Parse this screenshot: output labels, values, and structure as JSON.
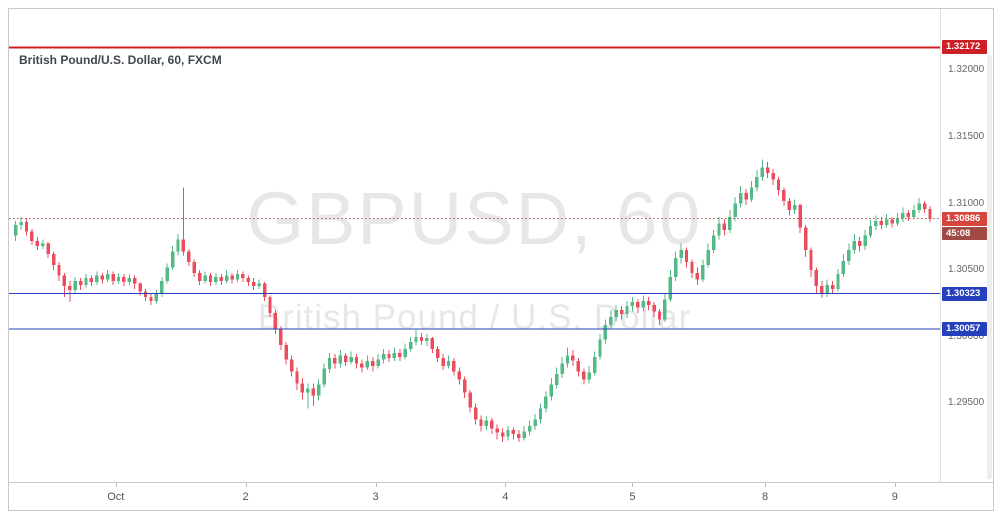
{
  "header": {
    "title": "British Pound/U.S. Dollar, 60, FXCM"
  },
  "watermark": {
    "line1": "GBPUSD, 60",
    "line2": "British Pound / U.S. Dollar"
  },
  "colors": {
    "up": "#53b987",
    "down": "#eb4d5c",
    "resistance_red": "#cc2026",
    "current_red": "#d6453e",
    "countdown_bg": "#9f4a43",
    "support_blue": "#2440bd",
    "axis_text": "#666666",
    "watermark": "#e7e7e7"
  },
  "chart_data": {
    "type": "candlestick",
    "symbol": "GBPUSD",
    "interval": "60",
    "provider": "FXCM",
    "title": "British Pound/U.S. Dollar, 60, FXCM",
    "current_price": 1.30886,
    "countdown": "45:08",
    "price_axis": {
      "min": 1.2891,
      "max": 1.3246,
      "ticks": [
        {
          "price": 1.32,
          "label": "1.32000"
        },
        {
          "price": 1.315,
          "label": "1.31500"
        },
        {
          "price": 1.31,
          "label": "1.31000"
        },
        {
          "price": 1.305,
          "label": "1.30500"
        },
        {
          "price": 1.3,
          "label": "1.30000"
        },
        {
          "price": 1.295,
          "label": "1.29500"
        }
      ]
    },
    "time_axis": {
      "ticks": [
        {
          "pos": 18.5,
          "label": "Oct"
        },
        {
          "pos": 42.5,
          "label": "2"
        },
        {
          "pos": 66.5,
          "label": "3"
        },
        {
          "pos": 90.5,
          "label": "4"
        },
        {
          "pos": 114,
          "label": "5"
        },
        {
          "pos": 138.5,
          "label": "8"
        },
        {
          "pos": 162.5,
          "label": "9"
        }
      ]
    },
    "levels": [
      {
        "name": "resistance-level",
        "price": 1.32172,
        "label": "1.32172",
        "line_color": "#cc2026",
        "badge_color": "#cc2026",
        "style": "solid",
        "width": 2
      },
      {
        "name": "current-price",
        "price": 1.30886,
        "label": "1.30886",
        "line_color": "#d6453e",
        "badge_color": "#d6453e",
        "style": "dotted",
        "width": 1,
        "countdown": "45:08"
      },
      {
        "name": "support-level-1",
        "price": 1.30323,
        "label": "1.30323",
        "line_color": "#2440bd",
        "badge_color": "#2440bd",
        "style": "solid",
        "width": 1
      },
      {
        "name": "support-level-2",
        "price": 1.30057,
        "label": "1.30057",
        "line_color": "#2440bd",
        "badge_color": "#2440bd",
        "style": "solid",
        "width": 1
      }
    ],
    "candles": [
      [
        1.3076,
        1.3087,
        1.3072,
        1.3084
      ],
      [
        1.3084,
        1.309,
        1.308,
        1.3086
      ],
      [
        1.3086,
        1.3089,
        1.3076,
        1.3079
      ],
      [
        1.3079,
        1.3081,
        1.3069,
        1.3072
      ],
      [
        1.3072,
        1.3075,
        1.3065,
        1.3068
      ],
      [
        1.3068,
        1.3073,
        1.3066,
        1.307
      ],
      [
        1.307,
        1.3071,
        1.3059,
        1.3062
      ],
      [
        1.3062,
        1.3064,
        1.305,
        1.3054
      ],
      [
        1.3054,
        1.3056,
        1.3042,
        1.3046
      ],
      [
        1.3046,
        1.3048,
        1.303,
        1.3038
      ],
      [
        1.3038,
        1.3042,
        1.3026,
        1.3035
      ],
      [
        1.3035,
        1.3045,
        1.3033,
        1.3042
      ],
      [
        1.3042,
        1.3044,
        1.3035,
        1.3039
      ],
      [
        1.3039,
        1.3047,
        1.3037,
        1.3044
      ],
      [
        1.3044,
        1.3046,
        1.3038,
        1.3041
      ],
      [
        1.3041,
        1.3049,
        1.3039,
        1.3046
      ],
      [
        1.3046,
        1.3048,
        1.304,
        1.3043
      ],
      [
        1.3043,
        1.305,
        1.3041,
        1.3047
      ],
      [
        1.3047,
        1.3049,
        1.3039,
        1.3042
      ],
      [
        1.3042,
        1.3048,
        1.304,
        1.3045
      ],
      [
        1.3045,
        1.3047,
        1.3038,
        1.3041
      ],
      [
        1.3041,
        1.3047,
        1.3039,
        1.3044
      ],
      [
        1.3044,
        1.3046,
        1.3036,
        1.304
      ],
      [
        1.304,
        1.3041,
        1.3031,
        1.3034
      ],
      [
        1.3034,
        1.3036,
        1.3027,
        1.303
      ],
      [
        1.303,
        1.3033,
        1.3024,
        1.3027
      ],
      [
        1.3027,
        1.3035,
        1.3025,
        1.3032
      ],
      [
        1.3032,
        1.3045,
        1.303,
        1.3042
      ],
      [
        1.3042,
        1.3055,
        1.304,
        1.3052
      ],
      [
        1.3052,
        1.3068,
        1.305,
        1.3064
      ],
      [
        1.3064,
        1.3077,
        1.3061,
        1.3073
      ],
      [
        1.3073,
        1.3112,
        1.3061,
        1.3064
      ],
      [
        1.3064,
        1.3066,
        1.3053,
        1.3056
      ],
      [
        1.3056,
        1.3058,
        1.3045,
        1.3048
      ],
      [
        1.3048,
        1.305,
        1.3039,
        1.3042
      ],
      [
        1.3042,
        1.3049,
        1.304,
        1.3046
      ],
      [
        1.3046,
        1.3048,
        1.3038,
        1.3041
      ],
      [
        1.3041,
        1.3048,
        1.3039,
        1.3045
      ],
      [
        1.3045,
        1.3047,
        1.3039,
        1.3042
      ],
      [
        1.3042,
        1.305,
        1.304,
        1.3046
      ],
      [
        1.3046,
        1.3048,
        1.304,
        1.3043
      ],
      [
        1.3043,
        1.305,
        1.3041,
        1.3047
      ],
      [
        1.3047,
        1.3049,
        1.3041,
        1.3044
      ],
      [
        1.3044,
        1.3046,
        1.3038,
        1.3041
      ],
      [
        1.3041,
        1.3044,
        1.3035,
        1.3038
      ],
      [
        1.3038,
        1.3043,
        1.3036,
        1.304
      ],
      [
        1.304,
        1.3041,
        1.3027,
        1.303
      ],
      [
        1.303,
        1.3031,
        1.3015,
        1.3018
      ],
      [
        1.3018,
        1.302,
        1.3002,
        1.3006
      ],
      [
        1.3006,
        1.3008,
        1.299,
        1.2994
      ],
      [
        1.2994,
        1.2996,
        1.2979,
        1.2983
      ],
      [
        1.2983,
        1.2986,
        1.297,
        1.2974
      ],
      [
        1.2974,
        1.2977,
        1.296,
        1.2965
      ],
      [
        1.2965,
        1.2969,
        1.2953,
        1.2958
      ],
      [
        1.2958,
        1.2965,
        1.2946,
        1.2961
      ],
      [
        1.2961,
        1.2965,
        1.2948,
        1.2956
      ],
      [
        1.2956,
        1.2968,
        1.2952,
        1.2964
      ],
      [
        1.2964,
        1.298,
        1.2962,
        1.2976
      ],
      [
        1.2976,
        1.2988,
        1.2973,
        1.2984
      ],
      [
        1.2984,
        1.2987,
        1.2976,
        1.298
      ],
      [
        1.298,
        1.299,
        1.2977,
        1.2986
      ],
      [
        1.2986,
        1.2988,
        1.2978,
        1.2981
      ],
      [
        1.2981,
        1.2989,
        1.2979,
        1.2985
      ],
      [
        1.2985,
        1.2987,
        1.2976,
        1.298
      ],
      [
        1.298,
        1.2983,
        1.2973,
        1.2977
      ],
      [
        1.2977,
        1.2986,
        1.2975,
        1.2982
      ],
      [
        1.2982,
        1.2985,
        1.2974,
        1.2978
      ],
      [
        1.2978,
        1.2987,
        1.2976,
        1.2983
      ],
      [
        1.2983,
        1.2991,
        1.298,
        1.2987
      ],
      [
        1.2987,
        1.299,
        1.2981,
        1.2984
      ],
      [
        1.2984,
        1.2992,
        1.2982,
        1.2988
      ],
      [
        1.2988,
        1.2991,
        1.2982,
        1.2985
      ],
      [
        1.2985,
        1.2995,
        1.2983,
        1.2991
      ],
      [
        1.2991,
        1.3,
        1.2989,
        1.2996
      ],
      [
        1.2996,
        1.3005,
        1.2994,
        1.3
      ],
      [
        1.3,
        1.3003,
        1.2994,
        1.2997
      ],
      [
        1.2997,
        1.3002,
        1.2993,
        1.2999
      ],
      [
        1.2999,
        1.3,
        1.2988,
        1.2991
      ],
      [
        1.2991,
        1.2993,
        1.2981,
        1.2984
      ],
      [
        1.2984,
        1.2987,
        1.2975,
        1.2978
      ],
      [
        1.2978,
        1.2986,
        1.2976,
        1.2982
      ],
      [
        1.2982,
        1.2984,
        1.2971,
        1.2974
      ],
      [
        1.2974,
        1.2977,
        1.2964,
        1.2968
      ],
      [
        1.2968,
        1.297,
        1.2954,
        1.2958
      ],
      [
        1.2958,
        1.296,
        1.2943,
        1.2947
      ],
      [
        1.2947,
        1.295,
        1.2934,
        1.2938
      ],
      [
        1.2938,
        1.2941,
        1.2929,
        1.2933
      ],
      [
        1.2933,
        1.294,
        1.293,
        1.2937
      ],
      [
        1.2937,
        1.2939,
        1.2927,
        1.2931
      ],
      [
        1.2931,
        1.2934,
        1.2923,
        1.2928
      ],
      [
        1.2928,
        1.2931,
        1.2921,
        1.2925
      ],
      [
        1.2925,
        1.2933,
        1.2922,
        1.293
      ],
      [
        1.293,
        1.2932,
        1.2923,
        1.2927
      ],
      [
        1.2927,
        1.293,
        1.2921,
        1.2924
      ],
      [
        1.2924,
        1.2933,
        1.2922,
        1.2929
      ],
      [
        1.2929,
        1.2937,
        1.2926,
        1.2933
      ],
      [
        1.2933,
        1.2942,
        1.293,
        1.2938
      ],
      [
        1.2938,
        1.295,
        1.2935,
        1.2946
      ],
      [
        1.2946,
        1.2959,
        1.2943,
        1.2955
      ],
      [
        1.2955,
        1.2969,
        1.2952,
        1.2964
      ],
      [
        1.2964,
        1.2977,
        1.2961,
        1.2972
      ],
      [
        1.2972,
        1.2985,
        1.2969,
        1.298
      ],
      [
        1.298,
        1.2992,
        1.2977,
        1.2986
      ],
      [
        1.2986,
        1.299,
        1.2978,
        1.2982
      ],
      [
        1.2982,
        1.2984,
        1.297,
        1.2974
      ],
      [
        1.2974,
        1.2976,
        1.2964,
        1.2968
      ],
      [
        1.2968,
        1.2978,
        1.2965,
        1.2973
      ],
      [
        1.2973,
        1.2989,
        1.2971,
        1.2985
      ],
      [
        1.2985,
        1.3002,
        1.2983,
        1.2998
      ],
      [
        1.2998,
        1.3013,
        1.2995,
        1.3009
      ],
      [
        1.3009,
        1.302,
        1.3006,
        1.3015
      ],
      [
        1.3015,
        1.3024,
        1.3012,
        1.302
      ],
      [
        1.302,
        1.3023,
        1.3013,
        1.3017
      ],
      [
        1.3017,
        1.3027,
        1.3014,
        1.3023
      ],
      [
        1.3023,
        1.303,
        1.3019,
        1.3026
      ],
      [
        1.3026,
        1.3028,
        1.3018,
        1.3022
      ],
      [
        1.3022,
        1.3031,
        1.3019,
        1.3027
      ],
      [
        1.3027,
        1.303,
        1.302,
        1.3024
      ],
      [
        1.3024,
        1.3026,
        1.3015,
        1.3019
      ],
      [
        1.3019,
        1.3021,
        1.3009,
        1.3013
      ],
      [
        1.3013,
        1.3032,
        1.3011,
        1.3028
      ],
      [
        1.3028,
        1.305,
        1.3026,
        1.3045
      ],
      [
        1.3045,
        1.3064,
        1.3042,
        1.3059
      ],
      [
        1.3059,
        1.307,
        1.3055,
        1.3065
      ],
      [
        1.3065,
        1.3067,
        1.3052,
        1.3056
      ],
      [
        1.3056,
        1.3058,
        1.3044,
        1.3048
      ],
      [
        1.3048,
        1.3052,
        1.3039,
        1.3043
      ],
      [
        1.3043,
        1.3058,
        1.3041,
        1.3054
      ],
      [
        1.3054,
        1.307,
        1.3052,
        1.3065
      ],
      [
        1.3065,
        1.308,
        1.3063,
        1.3076
      ],
      [
        1.3076,
        1.309,
        1.3073,
        1.3085
      ],
      [
        1.3085,
        1.3088,
        1.3076,
        1.308
      ],
      [
        1.308,
        1.3095,
        1.3078,
        1.309
      ],
      [
        1.309,
        1.3105,
        1.3087,
        1.31
      ],
      [
        1.31,
        1.3113,
        1.3097,
        1.3108
      ],
      [
        1.3108,
        1.3111,
        1.3099,
        1.3103
      ],
      [
        1.3103,
        1.3117,
        1.3101,
        1.3112
      ],
      [
        1.3112,
        1.3125,
        1.3109,
        1.312
      ],
      [
        1.312,
        1.3133,
        1.3117,
        1.3127
      ],
      [
        1.3127,
        1.3131,
        1.3119,
        1.3123
      ],
      [
        1.3123,
        1.3126,
        1.3114,
        1.3118
      ],
      [
        1.3118,
        1.312,
        1.3106,
        1.311
      ],
      [
        1.311,
        1.3112,
        1.3098,
        1.3102
      ],
      [
        1.3102,
        1.3104,
        1.3091,
        1.3095
      ],
      [
        1.3095,
        1.3103,
        1.3092,
        1.3099
      ],
      [
        1.3099,
        1.31,
        1.3078,
        1.3082
      ],
      [
        1.3082,
        1.3084,
        1.306,
        1.3065
      ],
      [
        1.3065,
        1.3067,
        1.3045,
        1.305
      ],
      [
        1.305,
        1.3052,
        1.3033,
        1.3038
      ],
      [
        1.3038,
        1.3042,
        1.3029,
        1.3033
      ],
      [
        1.3033,
        1.3043,
        1.303,
        1.3039
      ],
      [
        1.3039,
        1.3042,
        1.3032,
        1.3036
      ],
      [
        1.3036,
        1.3051,
        1.3034,
        1.3047
      ],
      [
        1.3047,
        1.3062,
        1.3045,
        1.3057
      ],
      [
        1.3057,
        1.307,
        1.3054,
        1.3065
      ],
      [
        1.3065,
        1.3077,
        1.3062,
        1.3072
      ],
      [
        1.3072,
        1.3075,
        1.3064,
        1.3068
      ],
      [
        1.3068,
        1.308,
        1.3065,
        1.3076
      ],
      [
        1.3076,
        1.3088,
        1.3074,
        1.3083
      ],
      [
        1.3083,
        1.3091,
        1.308,
        1.3087
      ],
      [
        1.3087,
        1.309,
        1.3081,
        1.3084
      ],
      [
        1.3084,
        1.3092,
        1.3082,
        1.3088
      ],
      [
        1.3088,
        1.309,
        1.3082,
        1.3085
      ],
      [
        1.3085,
        1.3093,
        1.3083,
        1.3089
      ],
      [
        1.3089,
        1.3097,
        1.3086,
        1.3093
      ],
      [
        1.3093,
        1.3095,
        1.3087,
        1.309
      ],
      [
        1.309,
        1.3099,
        1.3088,
        1.3095
      ],
      [
        1.3095,
        1.3104,
        1.3093,
        1.31
      ],
      [
        1.31,
        1.3102,
        1.3093,
        1.3096
      ],
      [
        1.3096,
        1.3098,
        1.3086,
        1.30886
      ]
    ]
  }
}
